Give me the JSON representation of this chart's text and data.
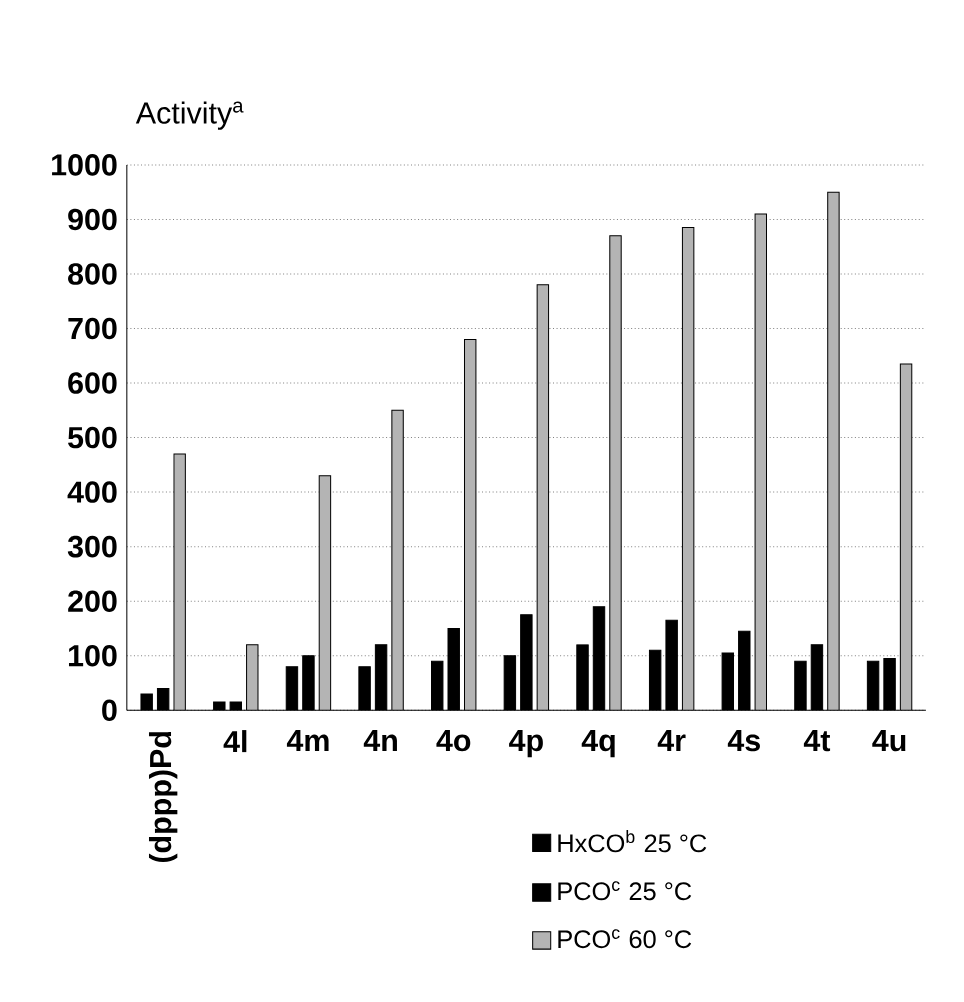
{
  "chart_data": {
    "type": "bar",
    "ylabel": "Activity$^{a}$",
    "categories": [
      "(dppp)Pd",
      "4l",
      "4m",
      "4n",
      "4o",
      "4p",
      "4q",
      "4r",
      "4s",
      "4t",
      "4u"
    ],
    "series": [
      {
        "name": "HxCO$^{b}$ 25 °C",
        "color": "#000000",
        "values": [
          30,
          15,
          80,
          80,
          90,
          100,
          120,
          110,
          105,
          90,
          90
        ]
      },
      {
        "name": "PCO$^{c}$ 25 °C",
        "color": "#000000",
        "values": [
          40,
          15,
          100,
          120,
          150,
          175,
          190,
          165,
          145,
          120,
          95
        ]
      },
      {
        "name": "PCO$^{c}$ 60 °C",
        "color": "#b4b4b4",
        "values": [
          470,
          120,
          430,
          550,
          680,
          780,
          870,
          885,
          910,
          950,
          635
        ]
      }
    ],
    "ylim": [
      0,
      1000
    ],
    "yticks": [
      0,
      100,
      200,
      300,
      400,
      500,
      600,
      700,
      800,
      900,
      1000
    ],
    "grid": "y",
    "legend": "bottom"
  }
}
